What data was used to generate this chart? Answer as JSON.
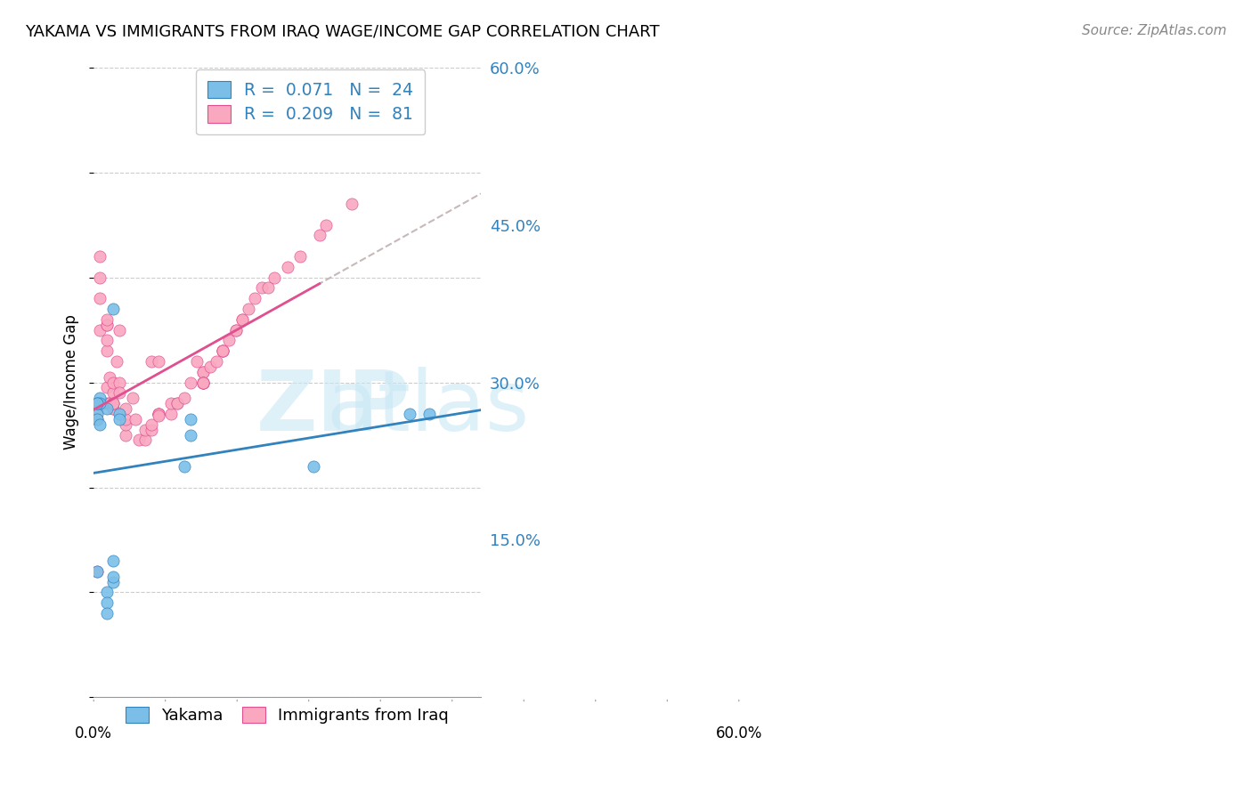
{
  "title": "YAKAMA VS IMMIGRANTS FROM IRAQ WAGE/INCOME GAP CORRELATION CHART",
  "source": "Source: ZipAtlas.com",
  "ylabel": "Wage/Income Gap",
  "xlim": [
    0.0,
    0.6
  ],
  "ylim": [
    0.0,
    0.6
  ],
  "ytick_vals": [
    0.15,
    0.3,
    0.45,
    0.6
  ],
  "ytick_labels": [
    "15.0%",
    "30.0%",
    "45.0%",
    "60.0%"
  ],
  "r1": "0.071",
  "n1": "24",
  "r2": "0.209",
  "n2": "81",
  "color_blue": "#7BBFE8",
  "color_pink": "#F9A8C0",
  "line_blue": "#3182BD",
  "line_pink": "#E05090",
  "line_dashed": "#C8B8B8",
  "label1": "Yakama",
  "label2": "Immigrants from Iraq",
  "yakama_x": [
    0.02,
    0.01,
    0.005,
    0.01,
    0.005,
    0.005,
    0.005,
    0.01,
    0.005,
    0.03,
    0.03,
    0.03,
    0.04,
    0.04,
    0.15,
    0.15,
    0.14,
    0.34,
    0.49,
    0.52,
    0.02,
    0.02,
    0.02,
    0.03
  ],
  "yakama_y": [
    0.275,
    0.285,
    0.27,
    0.28,
    0.28,
    0.28,
    0.265,
    0.26,
    0.12,
    0.11,
    0.115,
    0.13,
    0.27,
    0.265,
    0.265,
    0.25,
    0.22,
    0.22,
    0.27,
    0.27,
    0.1,
    0.09,
    0.08,
    0.37
  ],
  "iraq_x": [
    0.005,
    0.005,
    0.005,
    0.01,
    0.01,
    0.01,
    0.01,
    0.02,
    0.02,
    0.02,
    0.02,
    0.02,
    0.02,
    0.02,
    0.025,
    0.025,
    0.025,
    0.03,
    0.03,
    0.03,
    0.03,
    0.03,
    0.03,
    0.03,
    0.035,
    0.04,
    0.04,
    0.04,
    0.05,
    0.05,
    0.05,
    0.05,
    0.06,
    0.065,
    0.07,
    0.08,
    0.08,
    0.09,
    0.09,
    0.09,
    0.1,
    0.1,
    0.1,
    0.1,
    0.1,
    0.1,
    0.12,
    0.12,
    0.13,
    0.13,
    0.14,
    0.15,
    0.16,
    0.17,
    0.17,
    0.17,
    0.17,
    0.17,
    0.17,
    0.17,
    0.18,
    0.19,
    0.2,
    0.2,
    0.2,
    0.2,
    0.21,
    0.22,
    0.22,
    0.23,
    0.23,
    0.24,
    0.25,
    0.26,
    0.27,
    0.28,
    0.3,
    0.32,
    0.35,
    0.36,
    0.4
  ],
  "iraq_y": [
    0.275,
    0.265,
    0.12,
    0.35,
    0.38,
    0.4,
    0.42,
    0.33,
    0.34,
    0.355,
    0.355,
    0.36,
    0.295,
    0.28,
    0.28,
    0.28,
    0.305,
    0.275,
    0.275,
    0.28,
    0.29,
    0.3,
    0.28,
    0.28,
    0.32,
    0.3,
    0.29,
    0.35,
    0.25,
    0.26,
    0.265,
    0.275,
    0.285,
    0.265,
    0.245,
    0.245,
    0.255,
    0.255,
    0.26,
    0.32,
    0.27,
    0.27,
    0.27,
    0.27,
    0.268,
    0.32,
    0.27,
    0.28,
    0.28,
    0.28,
    0.285,
    0.3,
    0.32,
    0.31,
    0.31,
    0.3,
    0.3,
    0.3,
    0.3,
    0.3,
    0.315,
    0.32,
    0.33,
    0.33,
    0.33,
    0.33,
    0.34,
    0.35,
    0.35,
    0.36,
    0.36,
    0.37,
    0.38,
    0.39,
    0.39,
    0.4,
    0.41,
    0.42,
    0.44,
    0.45,
    0.47
  ]
}
